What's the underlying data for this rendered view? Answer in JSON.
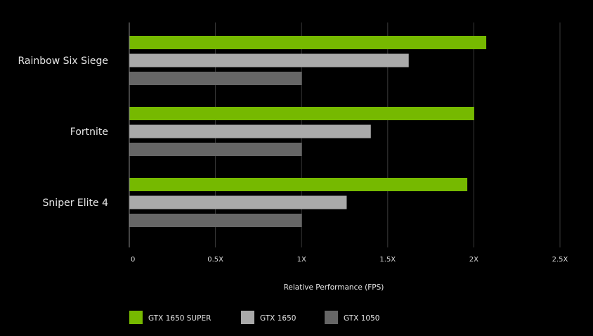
{
  "chart_data": {
    "type": "bar",
    "orientation": "horizontal",
    "categories": [
      "Rainbow Six Siege",
      "Fortnite",
      "Sniper Elite 4"
    ],
    "series": [
      {
        "name": "GTX 1650 SUPER",
        "color": "#76b900",
        "values": [
          2.07,
          2.0,
          1.96
        ]
      },
      {
        "name": "GTX 1650",
        "color": "#aaaaaa",
        "values": [
          1.62,
          1.4,
          1.26
        ]
      },
      {
        "name": "GTX 1050",
        "color": "#666666",
        "values": [
          1.0,
          1.0,
          1.0
        ]
      }
    ],
    "xticks": [
      0,
      0.5,
      1,
      1.5,
      2,
      2.5
    ],
    "xtick_labels": [
      "0",
      "0.5X",
      "1X",
      "1.5X",
      "2X",
      "2.5X"
    ],
    "xlim": [
      0,
      2.5
    ],
    "xlabel": "Relative Performance (FPS)",
    "ylabel": "",
    "title": "",
    "grid": true,
    "legend_position": "bottom-left"
  },
  "colors": {
    "background": "#000000",
    "gridline": "#3a3a3a",
    "axis": "#888888"
  }
}
